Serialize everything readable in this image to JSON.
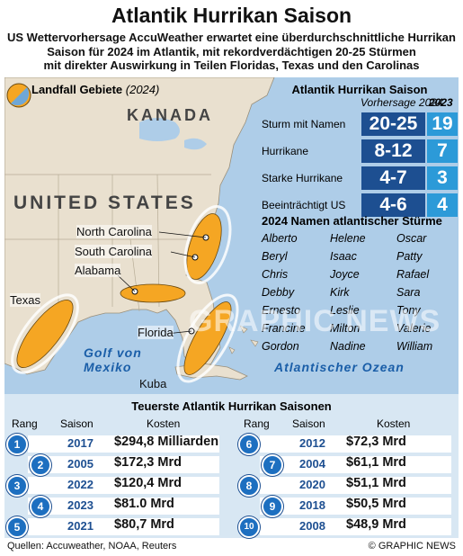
{
  "title": "Atlantik Hurrikan Saison",
  "subtitle": [
    "US Wettervorhersage AccuWeather erwartet eine überdurchschnittliche Hurrikan",
    "Saison für 2024 im Atlantik, mit rekordverdächtigen 20-25 Stürmen",
    "mit direkter Auswirkung in Teilen Floridas, Texas und den Carolinas"
  ],
  "legend": {
    "label": "Landfall Gebiete",
    "year": "(2024)"
  },
  "map_labels": {
    "kanada": "KANADA",
    "united_states": "UNITED STATES",
    "north_carolina": "North Carolina",
    "south_carolina": "South Carolina",
    "alabama": "Alabama",
    "texas": "Texas",
    "florida": "Florida",
    "golf1": "Golf von",
    "golf2": "Mexiko",
    "kuba": "Kuba",
    "ocean": "Atlantischer Ozean"
  },
  "forecast": {
    "title": "Atlantik Hurrikan Saison",
    "subtitle": "Vorhersage 2024",
    "year_prev": "2023",
    "rows": [
      {
        "label": "Sturm mit Namen",
        "v2024": "20-25",
        "v2023": "19"
      },
      {
        "label": "Hurrikane",
        "v2024": "8-12",
        "v2023": "7"
      },
      {
        "label": "Starke Hurrikane",
        "v2024": "4-7",
        "v2023": "3"
      },
      {
        "label": "Beeinträchtigt US",
        "v2024": "4-6",
        "v2023": "4"
      }
    ]
  },
  "names_title": "2024 Namen atlantischer Stürme",
  "names": [
    [
      "Alberto",
      "Helene",
      "Oscar"
    ],
    [
      "Beryl",
      "Isaac",
      "Patty"
    ],
    [
      "Chris",
      "Joyce",
      "Rafael"
    ],
    [
      "Debby",
      "Kirk",
      "Sara"
    ],
    [
      "Ernesto",
      "Leslie",
      "Tony"
    ],
    [
      "Francine",
      "Milton",
      "Valerie"
    ],
    [
      "Gordon",
      "Nadine",
      "William"
    ]
  ],
  "ranking": {
    "title": "Teuerste Atlantik Hurrikan Saisonen",
    "headers": {
      "rang": "Rang",
      "saison": "Saison",
      "kosten": "Kosten"
    },
    "left": [
      {
        "rank": "1",
        "year": "2017",
        "cost": "$294,8 Milliarden"
      },
      {
        "rank": "2",
        "year": "2005",
        "cost": "$172,3 Mrd"
      },
      {
        "rank": "3",
        "year": "2022",
        "cost": "$120,4 Mrd"
      },
      {
        "rank": "4",
        "year": "2023",
        "cost": "$81.0 Mrd"
      },
      {
        "rank": "5",
        "year": "2021",
        "cost": "$80,7 Mrd"
      }
    ],
    "right": [
      {
        "rank": "6",
        "year": "2012",
        "cost": "$72,3 Mrd"
      },
      {
        "rank": "7",
        "year": "2004",
        "cost": "$61,1 Mrd"
      },
      {
        "rank": "8",
        "year": "2020",
        "cost": "$51,1 Mrd"
      },
      {
        "rank": "9",
        "year": "2018",
        "cost": "$50,5 Mrd"
      },
      {
        "rank": "10",
        "year": "2008",
        "cost": "$48,9 Mrd"
      }
    ]
  },
  "sources": "Quellen: Accuweather, NOAA, Reuters",
  "credit": "© GRAPHIC NEWS",
  "watermark": "GRAPHIC NEWS",
  "colors": {
    "land": "#e9e0cf",
    "sea": "#aecde8",
    "landfall": "#f5a623",
    "forecast_2024": "#1d4f91",
    "forecast_2023": "#2c9ad8"
  }
}
